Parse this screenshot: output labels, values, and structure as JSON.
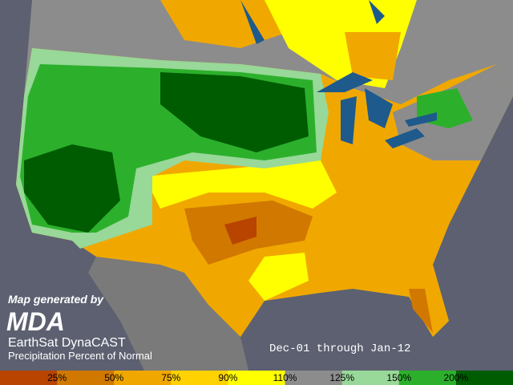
{
  "credit": {
    "generated_by": "Map generated by",
    "logo": "MDA",
    "product": "EarthSat DynaCAST",
    "subtitle": "Precipitation Percent of Normal"
  },
  "period": "Dec-01 through Jan-12",
  "legend": {
    "labels": [
      "25%",
      "50%",
      "75%",
      "90%",
      "110%",
      "125%",
      "150%",
      "200%"
    ],
    "colors": [
      "#b84400",
      "#d07800",
      "#f0a800",
      "#ffd200",
      "#ffff00",
      "#8c8c8c",
      "#98d898",
      "#2cb02c",
      "#005c00"
    ]
  }
}
